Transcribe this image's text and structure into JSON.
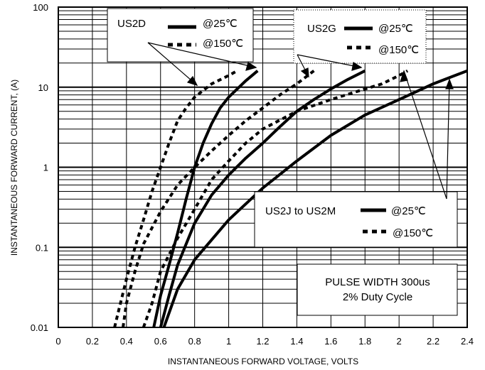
{
  "chart_data": {
    "type": "line",
    "title": "",
    "xlabel": "INSTANTANEOUS FORWARD VOLTAGE, VOLTS",
    "ylabel": "INSTANTANEOUS FORWARD CURRENT, (A)",
    "xlim": [
      0,
      2.4
    ],
    "ylim": [
      0.01,
      100
    ],
    "yscale": "log",
    "grid": true,
    "x_ticks": [
      "0",
      "0.2",
      "0.4",
      "0.6",
      "0.8",
      "1",
      "1.2",
      "1.4",
      "1.6",
      "1.8",
      "2",
      "2.2",
      "2.4"
    ],
    "y_ticks": [
      "0.01",
      "0.1",
      "1",
      "10",
      "100"
    ],
    "series": [
      {
        "group": "US2D",
        "temp": "25",
        "style": "solid",
        "points": [
          [
            0.56,
            0.01
          ],
          [
            0.6,
            0.025
          ],
          [
            0.65,
            0.06
          ],
          [
            0.7,
            0.15
          ],
          [
            0.75,
            0.4
          ],
          [
            0.8,
            1.0
          ],
          [
            0.85,
            2.0
          ],
          [
            0.9,
            3.5
          ],
          [
            0.95,
            5.5
          ],
          [
            1.0,
            7.5
          ],
          [
            1.1,
            12
          ],
          [
            1.17,
            16
          ]
        ]
      },
      {
        "group": "US2D",
        "temp": "150",
        "style": "dotted",
        "points": [
          [
            0.33,
            0.01
          ],
          [
            0.35,
            0.015
          ],
          [
            0.4,
            0.04
          ],
          [
            0.45,
            0.1
          ],
          [
            0.5,
            0.22
          ],
          [
            0.55,
            0.5
          ],
          [
            0.6,
            1.0
          ],
          [
            0.65,
            2.0
          ],
          [
            0.7,
            3.8
          ],
          [
            0.75,
            5.5
          ],
          [
            0.8,
            7.5
          ],
          [
            0.9,
            11
          ],
          [
            1.0,
            14
          ],
          [
            1.05,
            16
          ]
        ]
      },
      {
        "group": "US2G",
        "temp": "25",
        "style": "solid",
        "points": [
          [
            0.6,
            0.01
          ],
          [
            0.65,
            0.025
          ],
          [
            0.7,
            0.06
          ],
          [
            0.8,
            0.2
          ],
          [
            0.9,
            0.45
          ],
          [
            1.0,
            0.8
          ],
          [
            1.1,
            1.3
          ],
          [
            1.2,
            2.0
          ],
          [
            1.3,
            3.2
          ],
          [
            1.4,
            5.0
          ],
          [
            1.5,
            7.0
          ],
          [
            1.6,
            9.5
          ],
          [
            1.7,
            12.5
          ],
          [
            1.8,
            16
          ]
        ]
      },
      {
        "group": "US2G",
        "temp": "150",
        "style": "dotted",
        "points": [
          [
            0.38,
            0.01
          ],
          [
            0.4,
            0.02
          ],
          [
            0.45,
            0.05
          ],
          [
            0.5,
            0.11
          ],
          [
            0.6,
            0.28
          ],
          [
            0.7,
            0.6
          ],
          [
            0.8,
            1.0
          ],
          [
            0.9,
            1.6
          ],
          [
            1.0,
            2.5
          ],
          [
            1.1,
            3.8
          ],
          [
            1.2,
            5.5
          ],
          [
            1.3,
            8.0
          ],
          [
            1.4,
            11
          ],
          [
            1.5,
            16
          ]
        ]
      },
      {
        "group": "US2J to US2M",
        "temp": "25",
        "style": "solid",
        "points": [
          [
            0.62,
            0.01
          ],
          [
            0.7,
            0.03
          ],
          [
            0.8,
            0.07
          ],
          [
            1.0,
            0.22
          ],
          [
            1.2,
            0.55
          ],
          [
            1.4,
            1.2
          ],
          [
            1.6,
            2.5
          ],
          [
            1.8,
            4.5
          ],
          [
            2.0,
            7.0
          ],
          [
            2.2,
            11
          ],
          [
            2.4,
            16
          ]
        ]
      },
      {
        "group": "US2J to US2M",
        "temp": "150",
        "style": "dotted",
        "points": [
          [
            0.5,
            0.01
          ],
          [
            0.55,
            0.02
          ],
          [
            0.6,
            0.05
          ],
          [
            0.7,
            0.13
          ],
          [
            0.8,
            0.3
          ],
          [
            0.9,
            0.7
          ],
          [
            1.0,
            1.2
          ],
          [
            1.1,
            2.0
          ],
          [
            1.2,
            3.0
          ],
          [
            1.4,
            5.0
          ],
          [
            1.6,
            7.0
          ],
          [
            1.8,
            9.5
          ],
          [
            1.9,
            11
          ],
          [
            2.0,
            14
          ],
          [
            2.05,
            16
          ]
        ]
      }
    ],
    "legends": [
      {
        "title": "US2D",
        "label_25": "@25℃",
        "label_150": "@150℃"
      },
      {
        "title": "US2G",
        "label_25": "@25℃",
        "label_150": "@150℃"
      },
      {
        "title": "US2J to US2M",
        "label_25": "@25℃",
        "label_150": "@150℃"
      }
    ],
    "note_line1": "PULSE WIDTH 300us",
    "note_line2": "2% Duty Cycle"
  }
}
